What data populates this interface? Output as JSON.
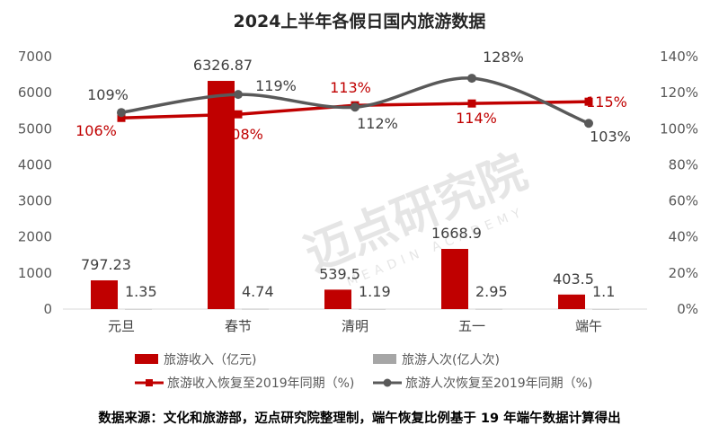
{
  "chart_data": {
    "type": "bar+line",
    "title": "2024上半年各假日国内旅游数据",
    "categories": [
      "元旦",
      "春节",
      "清明",
      "五一",
      "端午"
    ],
    "bar_series": [
      {
        "name": "旅游收入（亿元)",
        "axis": "left",
        "color": "#c00000",
        "values": [
          797.23,
          6326.87,
          539.5,
          1668.9,
          403.5
        ]
      },
      {
        "name": "旅游人次(亿人次)",
        "axis": "left",
        "color": "#a6a6a6",
        "values": [
          1.35,
          4.74,
          1.19,
          2.95,
          1.1
        ]
      }
    ],
    "line_series": [
      {
        "name": "旅游收入恢复至2019年同期（%)",
        "axis": "right",
        "color": "#c00000",
        "marker": "square",
        "smooth": false,
        "values": [
          106,
          108,
          113,
          114,
          115
        ]
      },
      {
        "name": "旅游人次恢复至2019年同期（%)",
        "axis": "right",
        "color": "#595959",
        "marker": "circle",
        "smooth": true,
        "values": [
          109,
          119,
          112,
          128,
          103
        ]
      }
    ],
    "left_axis": {
      "range": [
        0,
        7000
      ],
      "step": 1000,
      "ticks": [
        "0",
        "1000",
        "2000",
        "3000",
        "4000",
        "5000",
        "6000",
        "7000"
      ]
    },
    "right_axis": {
      "range": [
        0,
        140
      ],
      "step": 20,
      "ticks": [
        "0%",
        "20%",
        "40%",
        "60%",
        "80%",
        "100%",
        "120%",
        "140%"
      ]
    },
    "grid": false,
    "legend_placement": "bottom",
    "bar_labels": [
      [
        "797.23",
        "6326.87",
        "539.5",
        "1668.9",
        "403.5"
      ],
      [
        "1.35",
        "4.74",
        "1.19",
        "2.95",
        "1.1"
      ]
    ],
    "line_labels": [
      [
        "106%",
        "108%",
        "113%",
        "114%",
        "115%"
      ],
      [
        "109%",
        "119%",
        "112%",
        "128%",
        "103%"
      ]
    ]
  },
  "watermark": {
    "name": "迈点研究院",
    "sub": "MEADIN ACADEMY"
  },
  "footer": "数据来源：文化和旅游部，迈点研究院整理制，端午恢复比例基于 19 年端午数据计算得出"
}
